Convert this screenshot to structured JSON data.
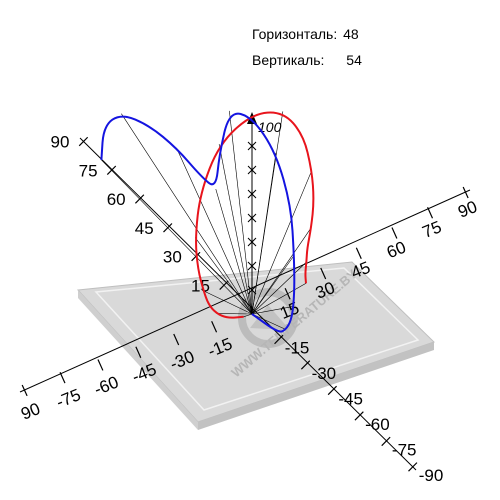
{
  "readout": {
    "horizontal_label": "Горизонталь:",
    "horizontal_value": "48",
    "vertical_label": "Вертикаль:",
    "vertical_value": "54"
  },
  "watermark": "WWW.TEMPERATURE.BY",
  "chart_data": {
    "type": "line",
    "title": "",
    "axes": {
      "horizontal": {
        "ticks_positive": [
          "15",
          "30",
          "45",
          "60",
          "75",
          "90"
        ],
        "ticks_negative": [
          "-15",
          "-30",
          "-45",
          "-60",
          "-75",
          "90"
        ],
        "range": [
          -90,
          90
        ]
      },
      "vertical_plane": {
        "ticks_positive": [
          "15",
          "30",
          "45",
          "60",
          "75",
          "90"
        ],
        "ticks_negative": [
          "-15",
          "-30",
          "-45",
          "-60",
          "-75",
          "-90"
        ],
        "range": [
          -90,
          90
        ]
      },
      "intensity": {
        "max_label": "100",
        "range": [
          0,
          100
        ]
      }
    },
    "series": [
      {
        "plane": "horizontal",
        "color": "#e8141c",
        "angles": [
          -90,
          -80,
          -70,
          -60,
          -50,
          -40,
          -30,
          -20,
          -10,
          0,
          10,
          20,
          30,
          40,
          50,
          60,
          70,
          80,
          90
        ],
        "values": [
          4,
          12,
          18,
          24,
          30,
          40,
          54,
          72,
          90,
          98,
          92,
          78,
          62,
          50,
          40,
          33,
          30,
          28,
          28
        ]
      },
      {
        "plane": "vertical",
        "color": "#1414e0",
        "angles": [
          -90,
          -80,
          -70,
          -60,
          -50,
          -40,
          -30,
          -20,
          -10,
          0,
          10,
          20,
          30,
          40,
          50,
          60,
          70,
          80,
          90
        ],
        "values": [
          0,
          18,
          24,
          30,
          36,
          44,
          56,
          76,
          92,
          97,
          90,
          66,
          50,
          55,
          68,
          82,
          96,
          104,
          104
        ]
      }
    ]
  }
}
